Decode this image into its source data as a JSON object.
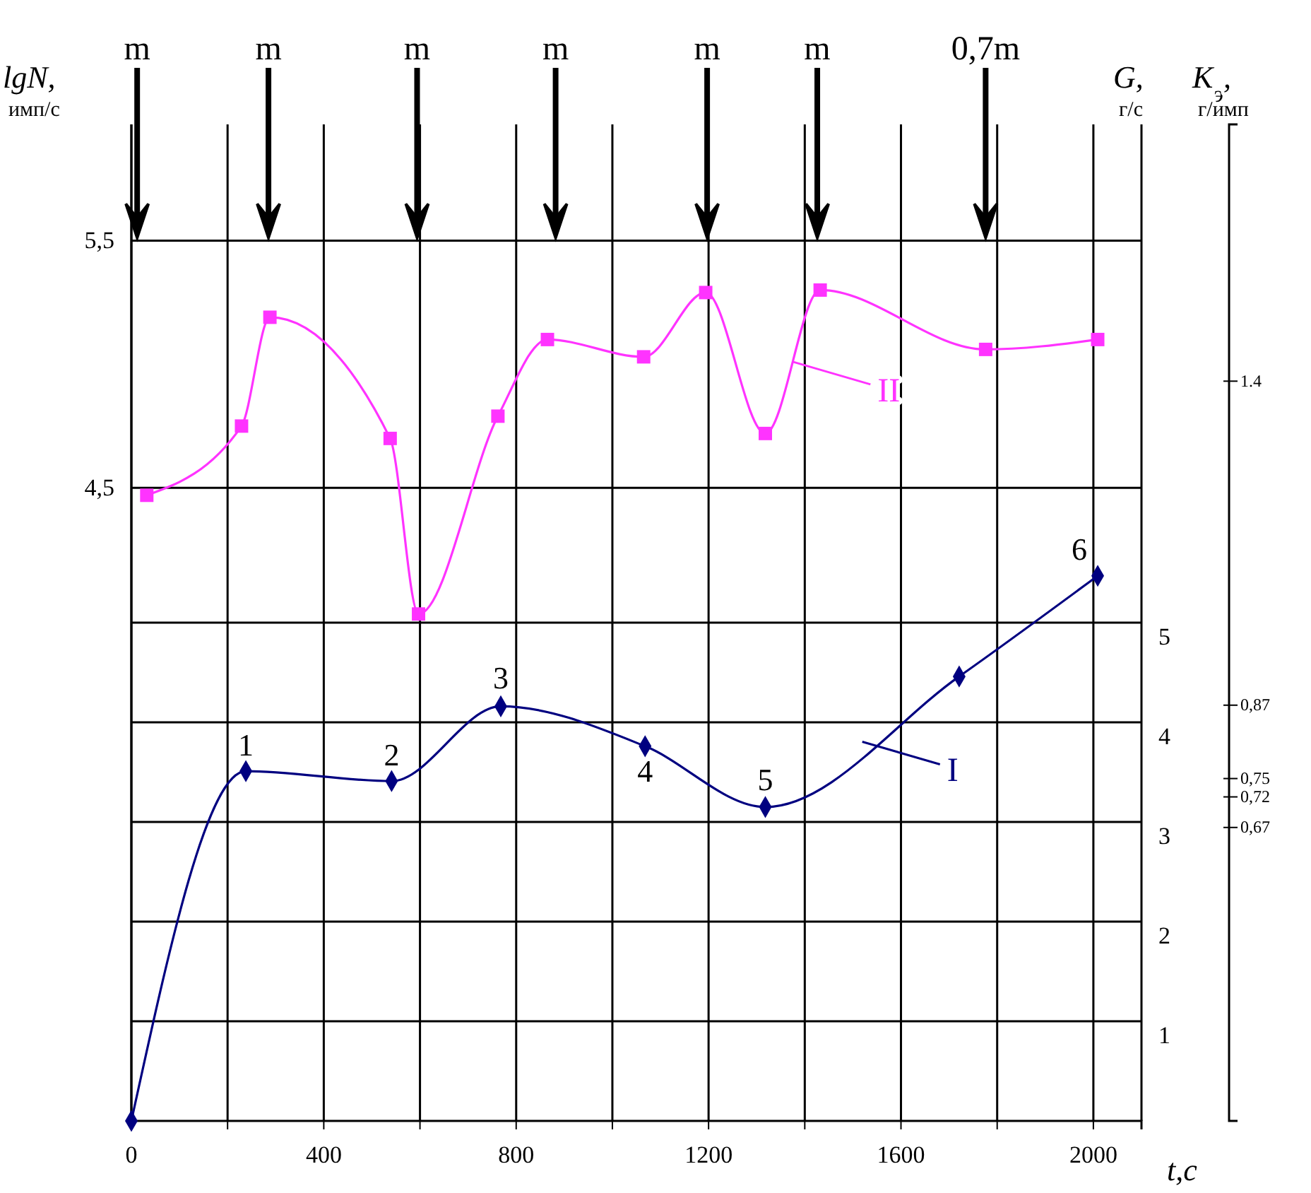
{
  "chart_data": {
    "type": "line",
    "xlabel": "t,с",
    "ylabel": "lgN, $_{имп/с}$",
    "y2label": "G, $_{г/с}$",
    "y3label": "K$_{э}$, $_{г/имп}$",
    "xlim": [
      0,
      2100
    ],
    "xticks": [
      0,
      {
        "value": 200,
        "label": null
      },
      400,
      {
        "value": 600,
        "label": null
      },
      800,
      {
        "value": 1000,
        "label": null
      },
      1200,
      {
        "value": 1400,
        "label": null
      },
      1600,
      {
        "value": 1800,
        "label": null
      },
      2000
    ],
    "ylim": [
      1.94,
      5.97
    ],
    "yticks": [
      {
        "value": 4.5,
        "label": "4,5"
      },
      {
        "value": 5.5,
        "label": "5,5"
      }
    ],
    "y2lim": [
      0,
      10
    ],
    "y2ticks": [
      1,
      2,
      3,
      4,
      5
    ],
    "y3lim": [
      0.19,
      1.82
    ],
    "y3ticks": [
      1.4,
      {
        "value": 0.87,
        "label": "0,87"
      },
      {
        "value": 0.75,
        "label": "0,75"
      },
      {
        "value": 0.72,
        "label": "0,72"
      },
      {
        "value": 0.67,
        "label": "0,67"
      }
    ],
    "grid": true,
    "legend": "right",
    "line_style": "solid",
    "ref_lines": [
      {
        "axis": "x",
        "value": 12,
        "label": "m"
      },
      {
        "axis": "x",
        "value": 285,
        "label": "m"
      },
      {
        "axis": "x",
        "value": 594,
        "label": "m"
      },
      {
        "axis": "x",
        "value": 882,
        "label": "m"
      },
      {
        "axis": "x",
        "value": 1197,
        "label": "m"
      },
      {
        "axis": "x",
        "value": 1426,
        "label": "m"
      },
      {
        "axis": "x",
        "value": 1776,
        "label": "0,7m"
      }
    ],
    "series": [
      {
        "name": "I",
        "color": "#000080",
        "axis": "y2",
        "marker": "diamond",
        "x": [
          0,
          238,
          541,
          768,
          1068,
          1318,
          1721,
          2009
        ],
        "values": [
          0,
          3.51,
          3.41,
          4.16,
          3.76,
          3.15,
          4.46,
          5.47
        ]
      },
      {
        "name": "II",
        "color": "#ff33ff",
        "marker": "square",
        "x": [
          32,
          229,
          288,
          538,
          597,
          762,
          865,
          1065,
          1194,
          1318,
          1432,
          1776,
          2009
        ],
        "values": [
          4.47,
          4.75,
          5.19,
          4.7,
          3.99,
          4.79,
          5.1,
          5.03,
          5.29,
          4.72,
          5.3,
          5.06,
          5.1
        ]
      }
    ],
    "annotations": [
      {
        "text": "1",
        "x": 238,
        "y": 3.35
      },
      {
        "text": "2",
        "x": 541,
        "y": 3.31
      },
      {
        "text": "3",
        "x": 768,
        "y": 3.62
      },
      {
        "text": "4",
        "x": 1068,
        "y": 3.46
      },
      {
        "text": "5",
        "x": 1318,
        "y": 3.21
      },
      {
        "text": "6",
        "x": 2009,
        "y": 4.14
      }
    ]
  }
}
